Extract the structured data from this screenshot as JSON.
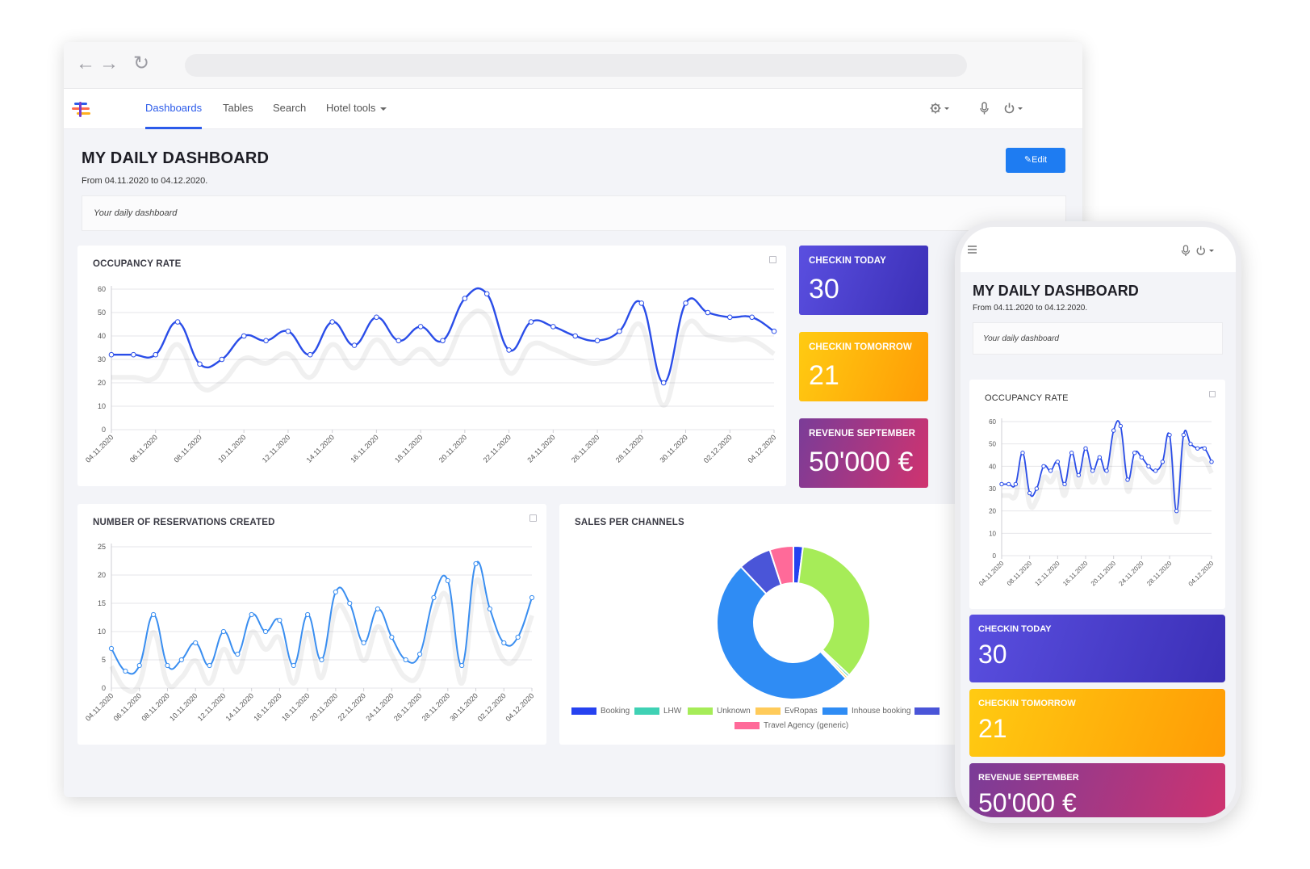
{
  "nav": {
    "tabs": [
      {
        "label": "Dashboards"
      },
      {
        "label": "Tables"
      },
      {
        "label": "Search"
      },
      {
        "label": "Hotel tools"
      }
    ]
  },
  "header": {
    "title": "MY DAILY DASHBOARD",
    "subtitle": "From 04.11.2020 to 04.12.2020.",
    "edit_label": "Edit",
    "description": "Your daily dashboard"
  },
  "stats": [
    {
      "label": "CHECKIN TODAY",
      "value": "30",
      "gradient": [
        "#5a4fe0",
        "#3b2fb6"
      ]
    },
    {
      "label": "CHECKIN TOMORROW",
      "value": "21",
      "gradient": [
        "#ffcb12",
        "#ff9b05"
      ]
    },
    {
      "label": "REVENUE SEPTEMBER",
      "value": "50'000 €",
      "gradient": [
        "#7a3c98",
        "#d0336f"
      ]
    }
  ],
  "mobile": {
    "title": "MY DAILY DASHBOARD",
    "subtitle": "From 04.11.2020 to 04.12.2020.",
    "description": "Your daily dashboard",
    "occupancy_title": "OCCUPANCY RATE",
    "stats": [
      {
        "label": "CHECKIN TODAY",
        "value": "30"
      },
      {
        "label": "CHECKIN TOMORROW",
        "value": "21"
      },
      {
        "label": "REVENUE SEPTEMBER",
        "value": "50'000 €"
      }
    ],
    "x_tick_labels": [
      "04.11.2020",
      "08.11.2020",
      "12.11.2020",
      "16.11.2020",
      "20.11.2020",
      "24.11.2020",
      "28.11.2020",
      "04.12.2020"
    ]
  },
  "colors": {
    "accent": "#2c5bea",
    "line": "#2a4de8",
    "edit_button": "#1e7cf2"
  },
  "chart_data": [
    {
      "type": "line",
      "title": "OCCUPANCY RATE",
      "x": [
        "04.11.2020",
        "05.11.2020",
        "06.11.2020",
        "07.11.2020",
        "08.11.2020",
        "09.11.2020",
        "10.11.2020",
        "11.11.2020",
        "12.11.2020",
        "13.11.2020",
        "14.11.2020",
        "15.11.2020",
        "16.11.2020",
        "17.11.2020",
        "18.11.2020",
        "19.11.2020",
        "20.11.2020",
        "21.11.2020",
        "22.11.2020",
        "23.11.2020",
        "24.11.2020",
        "25.11.2020",
        "26.11.2020",
        "27.11.2020",
        "28.11.2020",
        "29.11.2020",
        "30.11.2020",
        "01.12.2020",
        "02.12.2020",
        "03.12.2020",
        "04.12.2020"
      ],
      "x_tick_labels": [
        "04.11.2020",
        "06.11.2020",
        "08.11.2020",
        "10.11.2020",
        "12.11.2020",
        "14.11.2020",
        "16.11.2020",
        "18.11.2020",
        "20.11.2020",
        "22.11.2020",
        "24.11.2020",
        "26.11.2020",
        "28.11.2020",
        "30.11.2020",
        "02.12.2020",
        "04.12.2020"
      ],
      "values": [
        32,
        32,
        32,
        46,
        28,
        30,
        40,
        38,
        42,
        32,
        46,
        36,
        48,
        38,
        44,
        38,
        56,
        58,
        34,
        46,
        44,
        40,
        38,
        42,
        54,
        20,
        54,
        50,
        48,
        48,
        42
      ],
      "ylim": [
        0,
        60
      ],
      "yticks": [
        0,
        10,
        20,
        30,
        40,
        50,
        60
      ],
      "grid": true,
      "color": "#2a4de8"
    },
    {
      "type": "line",
      "title": "NUMBER OF RESERVATIONS CREATED",
      "x": [
        "04.11.2020",
        "05.11.2020",
        "06.11.2020",
        "07.11.2020",
        "08.11.2020",
        "09.11.2020",
        "10.11.2020",
        "11.11.2020",
        "12.11.2020",
        "13.11.2020",
        "14.11.2020",
        "15.11.2020",
        "16.11.2020",
        "17.11.2020",
        "18.11.2020",
        "19.11.2020",
        "20.11.2020",
        "21.11.2020",
        "22.11.2020",
        "23.11.2020",
        "24.11.2020",
        "25.11.2020",
        "26.11.2020",
        "27.11.2020",
        "28.11.2020",
        "29.11.2020",
        "30.11.2020",
        "01.12.2020",
        "02.12.2020",
        "03.12.2020",
        "04.12.2020"
      ],
      "x_tick_labels": [
        "04.11.2020",
        "06.11.2020",
        "08.11.2020",
        "10.11.2020",
        "12.11.2020",
        "14.11.2020",
        "16.11.2020",
        "18.11.2020",
        "20.11.2020",
        "22.11.2020",
        "24.11.2020",
        "26.11.2020",
        "28.11.2020",
        "30.11.2020",
        "02.12.2020",
        "04.12.2020"
      ],
      "values": [
        7,
        3,
        4,
        13,
        4,
        5,
        8,
        4,
        10,
        6,
        13,
        10,
        12,
        4,
        13,
        5,
        17,
        15,
        8,
        14,
        9,
        5,
        6,
        16,
        19,
        4,
        22,
        14,
        8,
        9,
        16
      ],
      "ylim": [
        0,
        25
      ],
      "yticks": [
        0,
        5,
        10,
        15,
        20,
        25
      ],
      "grid": true,
      "color": "#3a8ef0"
    },
    {
      "type": "pie",
      "title": "SALES PER CHANNELS",
      "legend": [
        {
          "name": "Booking",
          "color": "#2642f0"
        },
        {
          "name": "LHW",
          "color": "#3fd1b4"
        },
        {
          "name": "Unknown",
          "color": "#a6ec58"
        },
        {
          "name": "EvRopas",
          "color": "#ffcb5a"
        },
        {
          "name": "Inhouse booking",
          "color": "#2f8cf4"
        },
        {
          "name": "",
          "color": "#4a55d8"
        },
        {
          "name": "Travel Agency (generic)",
          "color": "#ff6a99"
        }
      ],
      "slices": [
        {
          "name": "Booking",
          "value": 2,
          "color": "#2642f0"
        },
        {
          "name": "Unknown",
          "value": 35,
          "color": "#a6ec58"
        },
        {
          "name": "LHW",
          "value": 0.5,
          "color": "#3fd1b4"
        },
        {
          "name": "EvRopas",
          "value": 0.5,
          "color": "#ffcb5a"
        },
        {
          "name": "Inhouse booking",
          "value": 50,
          "color": "#2f8cf4"
        },
        {
          "name": "",
          "value": 7,
          "color": "#4a55d8"
        },
        {
          "name": "Travel Agency (generic)",
          "value": 5,
          "color": "#ff6a99"
        }
      ],
      "legend_placement": "bottom"
    }
  ]
}
